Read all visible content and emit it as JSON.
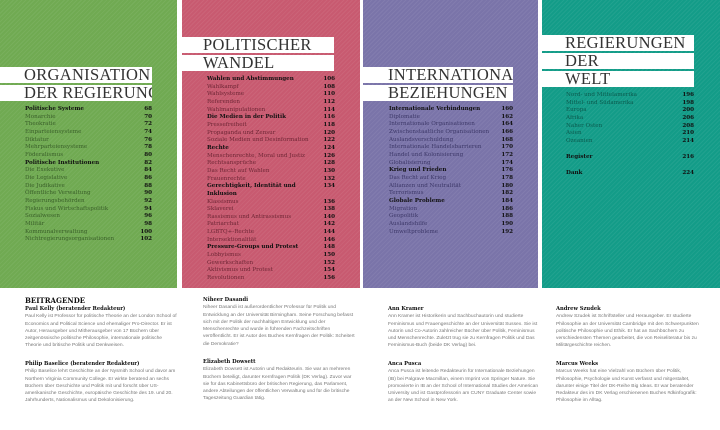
{
  "colors": {
    "green": "#70aa52",
    "red": "#c85a70",
    "purple": "#7a74a9",
    "teal": "#139c88"
  },
  "sections": [
    {
      "title": [
        "ORGANISATION",
        "DER REGIERUNG"
      ],
      "entries": [
        {
          "label": "Politische Systeme",
          "page": "68",
          "bold": true
        },
        {
          "label": "Monarchie",
          "page": "70"
        },
        {
          "label": "Theokratie",
          "page": "72"
        },
        {
          "label": "Einparteiensysteme",
          "page": "74"
        },
        {
          "label": "Diktatur",
          "page": "76"
        },
        {
          "label": "Mehrparteiensysteme",
          "page": "78"
        },
        {
          "label": "Föderalismus",
          "page": "80"
        },
        {
          "label": "Politische Institutionen",
          "page": "82",
          "bold": true
        },
        {
          "label": "Die Exekutive",
          "page": "84"
        },
        {
          "label": "Die Legislative",
          "page": "86"
        },
        {
          "label": "Die Judikative",
          "page": "88"
        },
        {
          "label": "Öffentliche Verwaltung",
          "page": "90"
        },
        {
          "label": "Regierungsbehörden",
          "page": "92"
        },
        {
          "label": "Fiskus und Wirtschaftspolitik",
          "page": "94"
        },
        {
          "label": "Sozialwesen",
          "page": "96"
        },
        {
          "label": "Militär",
          "page": "98"
        },
        {
          "label": "Kommunalverwaltung",
          "page": "100"
        },
        {
          "label": "Nichtregierungsorganisationen",
          "page": "102"
        }
      ]
    },
    {
      "title": [
        "POLITISCHER",
        "WANDEL"
      ],
      "entries": [
        {
          "label": "Wahlen und Abstimmungen",
          "page": "106",
          "bold": true
        },
        {
          "label": "Wahlkampf",
          "page": "108"
        },
        {
          "label": "Wahlsysteme",
          "page": "110"
        },
        {
          "label": "Referenden",
          "page": "112"
        },
        {
          "label": "Wahlmanipulationen",
          "page": "114"
        },
        {
          "label": "Die Medien in der Politik",
          "page": "116",
          "bold": true
        },
        {
          "label": "Pressefreiheit",
          "page": "118"
        },
        {
          "label": "Propaganda und Zensur",
          "page": "120"
        },
        {
          "label": "Soziale Medien und Desinformation",
          "page": "122"
        },
        {
          "label": "Rechte",
          "page": "124",
          "bold": true
        },
        {
          "label": "Menschenrechte, Moral und Justiz",
          "page": "126"
        },
        {
          "label": "Rechtsansprüche",
          "page": "128"
        },
        {
          "label": "Das Recht auf Wahlen",
          "page": "130"
        },
        {
          "label": "Frauenrechte",
          "page": "132"
        },
        {
          "label": "Gerechtigkeit, Identität und Inklusion",
          "page": "134",
          "bold": true
        },
        {
          "label": "Klassismus",
          "page": "136"
        },
        {
          "label": "Sklaverei",
          "page": "138"
        },
        {
          "label": "Rassismus und Antirassismus",
          "page": "140"
        },
        {
          "label": "Patriarchat",
          "page": "142"
        },
        {
          "label": "LGBTQ+-Rechte",
          "page": "144"
        },
        {
          "label": "Intersektionalität",
          "page": "146"
        },
        {
          "label": "Pressure-Groups und Protest",
          "page": "148",
          "bold": true
        },
        {
          "label": "Lobbyismus",
          "page": "150"
        },
        {
          "label": "Gewerkschaften",
          "page": "152"
        },
        {
          "label": "Aktivismus und Protest",
          "page": "154"
        },
        {
          "label": "Revolutionen",
          "page": "156"
        }
      ]
    },
    {
      "title": [
        "INTERNATIONALE",
        "BEZIEHUNGEN"
      ],
      "entries": [
        {
          "label": "Internationale Verbindungen",
          "page": "160",
          "bold": true
        },
        {
          "label": "Diplomatie",
          "page": "162"
        },
        {
          "label": "Internationale Organisationen",
          "page": "164"
        },
        {
          "label": "Zwischenstaatliche Organisationen",
          "page": "166"
        },
        {
          "label": "Auslandsverschuldung",
          "page": "168"
        },
        {
          "label": "Internationale Handelsbarrieren",
          "page": "170"
        },
        {
          "label": "Handel und Kolonisierung",
          "page": "172"
        },
        {
          "label": "Globalisierung",
          "page": "174"
        },
        {
          "label": "Krieg und Frieden",
          "page": "176",
          "bold": true
        },
        {
          "label": "Das Recht auf Krieg",
          "page": "178"
        },
        {
          "label": "Allianzen und Neutralität",
          "page": "180"
        },
        {
          "label": "Terrorismus",
          "page": "182"
        },
        {
          "label": "Globale Probleme",
          "page": "184",
          "bold": true
        },
        {
          "label": "Migration",
          "page": "186"
        },
        {
          "label": "Geopolitik",
          "page": "188"
        },
        {
          "label": "Auslandshilfe",
          "page": "190"
        },
        {
          "label": "Umweltprobleme",
          "page": "192"
        }
      ]
    },
    {
      "title": [
        "REGIERUNGEN",
        "DER",
        "WELT"
      ],
      "entries": [
        {
          "label": "Nord- und Mittelamerika",
          "page": "196"
        },
        {
          "label": "Mittel- und Südamerika",
          "page": "198"
        },
        {
          "label": "Europa",
          "page": "200"
        },
        {
          "label": "Afrika",
          "page": "206"
        },
        {
          "label": "Naher Osten",
          "page": "208"
        },
        {
          "label": "Asien",
          "page": "210"
        },
        {
          "label": "Ozeanien",
          "page": "214"
        },
        {
          "gap": true
        },
        {
          "label": "Register",
          "page": "216",
          "bold": true
        },
        {
          "gap": true
        },
        {
          "label": "Dank",
          "page": "224",
          "bold": true
        }
      ]
    }
  ],
  "contributors": {
    "heading": "BEITRAGENDE",
    "people": [
      {
        "name": "Paul Kelly (beratender Redakteur)",
        "bio": "Paul Kelly ist Professor für politische Theorie an der London School of Economics and Political Science und ehemaliger Pro-Director. Er ist Autor, Herausgeber und Mitherausgeber von 17 Büchern über zeitgenössische politische Philosophie, internationale politische Theorie und britische Politik und Denkweisen."
      },
      {
        "name": "Philip Baselice (beratender Redakteur)",
        "bio": "Philip Baselice lehrt Geschichte an der Nysmith School und davor am Northern Virginia Community College. Er wirkte beratend an sechs Büchern über Geschichte und Politik mit und forscht über US-amerikanische Geschichte, europäische Geschichte des 19. und 20. Jahrhunderts, Nationalismus und Dekolonisierung."
      },
      {
        "name": "Niheer Dasandi",
        "bio": "Niheer Dasandi ist außerordentlicher Professor für Politik und Entwicklung an der Universität Birmingham. Seine Forschung befasst sich mit der Politik der nachhaltigen Entwicklung und der Menschenrechte und wurde in führenden Fachzeitschriften veröffentlicht. Er ist Autor des Buches Kernfragen der Politik: Scheitert die Demokratie?"
      },
      {
        "name": "Elizabeth Dowsett",
        "bio": "Elizabeth Dowsett ist Autorin und Redakteurin. Sie war an mehreren Büchern beteiligt, darunter Kernfragen Politik (DK Verlag). Zuvor war sie für das Kabinettsbüro der britischen Regierung, das Parlament, andere Abteilungen der öffentlichen Verwaltung und für die britische Tageszeitung Guardian tätig."
      },
      {
        "name": "Ann Kramer",
        "bio": "Ann Kramer ist Historikerin und Sachbuchautorin und studierte Feminismus und Frauengeschichte an der Universität Sussex. Sie ist Autorin und Co-Autorin zahlreicher Bücher über Politik, Feminismus und Menschenrechte. Zuletzt trug sie zu Kernfragen Politik und Das Feminismus-Buch (beide DK Verlag) bei."
      },
      {
        "name": "Anca Pusca",
        "bio": "Anca Pusca ist leitende Redakteurin für Internationale Beziehungen (IB) bei Palgrave Macmillan, einem Imprint von Springer Nature. Sie promovierte in IB an der School of International Studies der American University und ist Gastprofessorin am CUNY Graduate Center sowie an der New School in New York."
      },
      {
        "name": "Andrew Szudek",
        "bio": "Andrew Szudek ist Schriftsteller und Herausgeber. Er studierte Philosophie an der Universität Cambridge mit den Schwerpunkten politische Philosophie und Ethik. Er hat an Sachbüchern zu verschiedensten Themen gearbeitet, die von Reiseliteratur bis zu Militärgeschichte reichen."
      },
      {
        "name": "Marcus Weeks",
        "bio": "Marcus Weeks hat eine Vielzahl von Büchern über Politik, Philosophie, Psychologie und Kunst verfasst und mitgestaltet, darunter einige Titel der DK-Reihe Big Ideas. Er war beratender Redakteur des im DK Verlag erschienenen Buches #dkinfografik: Philosophie im Alltag."
      }
    ]
  }
}
